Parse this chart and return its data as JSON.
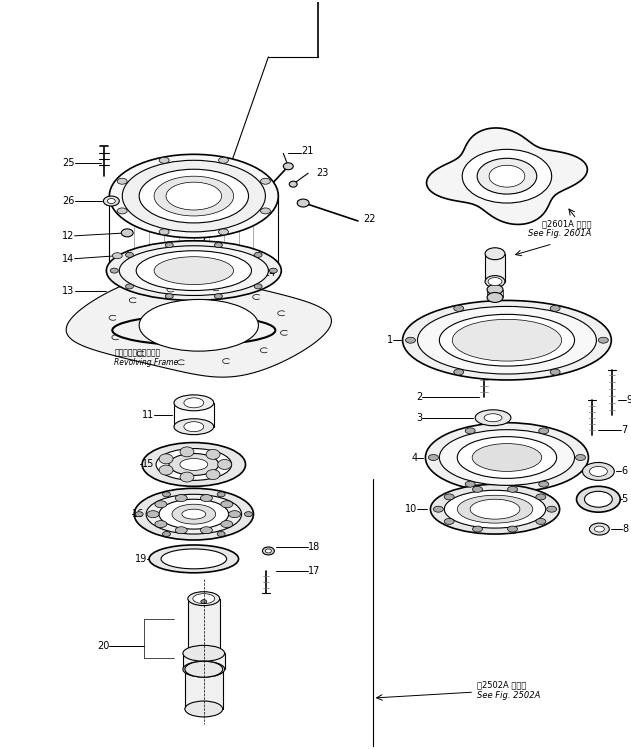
{
  "bg_color": "#ffffff",
  "lc": "#000000",
  "figsize": [
    6.31,
    7.49
  ],
  "dpi": 100,
  "note_2601_line1": "第2601A 図参照",
  "note_2601_line2": "See Fig. 2601A",
  "note_2502_line1": "第2502A 図参照",
  "note_2502_line2": "See Fig. 2502A",
  "revolving_jp": "レボルビングフレーム",
  "revolving_en": "Revolving Frame"
}
